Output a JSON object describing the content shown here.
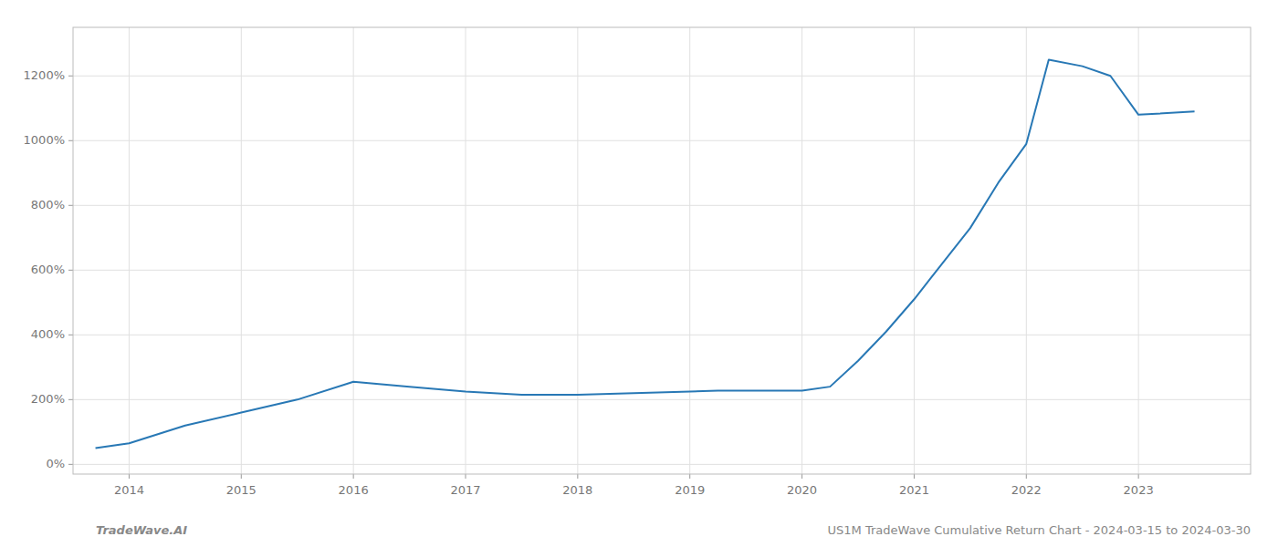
{
  "chart_data": {
    "type": "line",
    "x": [
      2013.7,
      2014.0,
      2014.5,
      2015.0,
      2015.5,
      2016.0,
      2016.5,
      2017.0,
      2017.5,
      2018.0,
      2018.5,
      2019.0,
      2019.25,
      2019.5,
      2019.75,
      2020.0,
      2020.25,
      2020.5,
      2020.75,
      2021.0,
      2021.25,
      2021.5,
      2021.75,
      2022.0,
      2022.2,
      2022.5,
      2022.75,
      2023.0,
      2023.5
    ],
    "values": [
      50,
      65,
      120,
      160,
      200,
      255,
      240,
      225,
      215,
      215,
      220,
      225,
      228,
      228,
      228,
      228,
      240,
      320,
      410,
      510,
      620,
      730,
      870,
      990,
      1250,
      1230,
      1200,
      1080,
      1090
    ],
    "color": "#2878b5",
    "xlim": [
      2013.5,
      2024.0
    ],
    "ylim": [
      -30,
      1350
    ],
    "xticks": [
      2014,
      2015,
      2016,
      2017,
      2018,
      2019,
      2020,
      2021,
      2022,
      2023
    ],
    "yticks": [
      {
        "value": 0,
        "label": "0%"
      },
      {
        "value": 200,
        "label": "200%"
      },
      {
        "value": 400,
        "label": "400%"
      },
      {
        "value": 600,
        "label": "600%"
      },
      {
        "value": 800,
        "label": "800%"
      },
      {
        "value": 1000,
        "label": "1000%"
      },
      {
        "value": 1200,
        "label": "1200%"
      }
    ],
    "grid": true,
    "annotations": [
      "TradeWave.AI",
      "US1M TradeWave Cumulative Return Chart - 2024-03-15 to 2024-03-30"
    ]
  }
}
